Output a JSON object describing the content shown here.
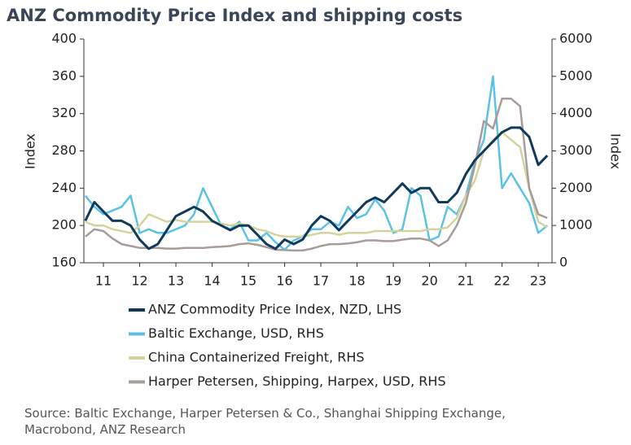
{
  "chart_data": {
    "type": "line",
    "title": "ANZ Commodity Price Index and shipping costs",
    "y_label": "Index",
    "y2_label": "Index",
    "source": "Source: Baltic Exchange, Harper Petersen & Co., Shanghai Shipping Exchange, Macrobond, ANZ Research",
    "x": [
      2010.5,
      2010.75,
      2011,
      2011.25,
      2011.5,
      2011.75,
      2012,
      2012.25,
      2012.5,
      2012.75,
      2013,
      2013.25,
      2013.5,
      2013.75,
      2014,
      2014.25,
      2014.5,
      2014.75,
      2015,
      2015.25,
      2015.5,
      2015.75,
      2016,
      2016.25,
      2016.5,
      2016.75,
      2017,
      2017.25,
      2017.5,
      2017.75,
      2018,
      2018.25,
      2018.5,
      2018.75,
      2019,
      2019.25,
      2019.5,
      2019.75,
      2020,
      2020.25,
      2020.5,
      2020.75,
      2021,
      2021.25,
      2021.5,
      2021.75,
      2022,
      2022.25,
      2022.5,
      2022.75,
      2023,
      2023.25
    ],
    "xlim": [
      2010.46,
      2023.38
    ],
    "xticks": [
      {
        "value": 2011,
        "label": "11"
      },
      {
        "value": 2012,
        "label": "12"
      },
      {
        "value": 2013,
        "label": "13"
      },
      {
        "value": 2014,
        "label": "14"
      },
      {
        "value": 2015,
        "label": "15"
      },
      {
        "value": 2016,
        "label": "16"
      },
      {
        "value": 2017,
        "label": "17"
      },
      {
        "value": 2018,
        "label": "18"
      },
      {
        "value": 2019,
        "label": "19"
      },
      {
        "value": 2020,
        "label": "20"
      },
      {
        "value": 2021,
        "label": "21"
      },
      {
        "value": 2022,
        "label": "22"
      },
      {
        "value": 2023,
        "label": "23"
      }
    ],
    "ylim": [
      160,
      400
    ],
    "yticks": [
      160,
      200,
      240,
      280,
      320,
      360,
      400
    ],
    "y2lim": [
      0,
      6000
    ],
    "y2ticks": [
      0,
      1000,
      2000,
      3000,
      4000,
      5000,
      6000
    ],
    "series": [
      {
        "name": "Baltic Exchange, USD, RHS",
        "color": "#5bc2e7",
        "axis": "y2",
        "values": [
          1800,
          1500,
          1300,
          1400,
          1500,
          1800,
          800,
          900,
          800,
          800,
          900,
          1000,
          1300,
          2000,
          1500,
          1000,
          900,
          1100,
          600,
          600,
          800,
          550,
          350,
          600,
          700,
          900,
          900,
          1100,
          1000,
          1500,
          1200,
          1300,
          1700,
          1400,
          800,
          900,
          2000,
          1800,
          600,
          700,
          1500,
          1300,
          1800,
          2700,
          3300,
          5000,
          2000,
          2400,
          2000,
          1600,
          800,
          1000
        ]
      },
      {
        "name": "China Containerized Freight, RHS",
        "color": "#d6d29c",
        "axis": "y2",
        "values": [
          1100,
          1000,
          1000,
          900,
          850,
          800,
          1000,
          1300,
          1200,
          1100,
          1150,
          1100,
          1100,
          1100,
          1100,
          1050,
          1000,
          1050,
          1000,
          900,
          850,
          750,
          700,
          700,
          700,
          750,
          800,
          800,
          750,
          800,
          800,
          800,
          850,
          850,
          850,
          850,
          850,
          850,
          900,
          900,
          950,
          1200,
          1800,
          2200,
          3000,
          3300,
          3500,
          3300,
          3100,
          2000,
          1100,
          950
        ]
      },
      {
        "name": "Harper Petersen, Shipping, Harpex, USD, RHS",
        "color": "#a89c98",
        "axis": "y2",
        "values": [
          700,
          900,
          850,
          650,
          500,
          450,
          400,
          400,
          400,
          380,
          380,
          400,
          400,
          400,
          420,
          430,
          450,
          500,
          520,
          480,
          420,
          350,
          340,
          330,
          330,
          380,
          450,
          500,
          500,
          520,
          550,
          600,
          600,
          580,
          580,
          620,
          650,
          650,
          600,
          450,
          600,
          1000,
          1600,
          2600,
          3800,
          3600,
          4400,
          4400,
          4200,
          2000,
          1300,
          1200
        ]
      },
      {
        "name": "ANZ Commodity Price Index, NZD, LHS",
        "color": "#0e3a5c",
        "values": [
          205,
          225,
          215,
          205,
          205,
          200,
          185,
          175,
          180,
          195,
          210,
          215,
          220,
          215,
          205,
          200,
          195,
          200,
          200,
          190,
          180,
          175,
          185,
          180,
          185,
          200,
          210,
          205,
          195,
          205,
          215,
          225,
          230,
          225,
          235,
          245,
          235,
          240,
          240,
          225,
          225,
          235,
          255,
          270,
          280,
          290,
          300,
          305,
          305,
          295,
          265,
          275
        ]
      }
    ],
    "legend_order": [
      3,
      0,
      1,
      2
    ]
  }
}
